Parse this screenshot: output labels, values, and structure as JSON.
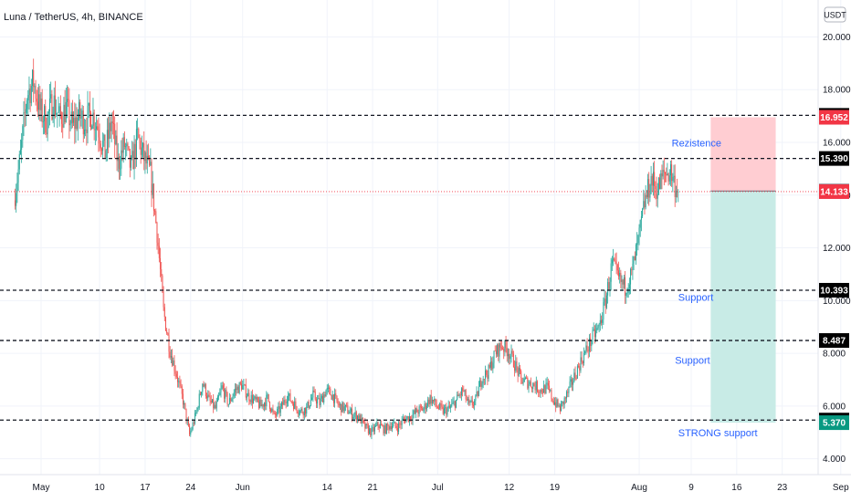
{
  "header": {
    "title": "Luna / TetherUS, 4h, BINANCE",
    "currency": "USDT"
  },
  "chart_data": {
    "type": "candlestick",
    "title": "Luna / TetherUS, 4h, BINANCE",
    "ylim": [
      3.4,
      21.4
    ],
    "yticks": [
      4,
      6,
      8,
      10,
      12,
      14,
      16,
      18,
      20
    ],
    "ytick_labels": [
      "4.000",
      "6.000",
      "8.000",
      "10.000",
      "12.000",
      "14.000",
      "16.000",
      "18.000",
      "20.000"
    ],
    "xticks": [
      {
        "label": "May",
        "day": 0
      },
      {
        "label": "10",
        "day": 9
      },
      {
        "label": "17",
        "day": 16
      },
      {
        "label": "24",
        "day": 23
      },
      {
        "label": "Jun",
        "day": 31
      },
      {
        "label": "14",
        "day": 44
      },
      {
        "label": "21",
        "day": 51
      },
      {
        "label": "Jul",
        "day": 61
      },
      {
        "label": "12",
        "day": 72
      },
      {
        "label": "19",
        "day": 79
      },
      {
        "label": "Aug",
        "day": 92
      },
      {
        "label": "9",
        "day": 100
      },
      {
        "label": "16",
        "day": 107
      },
      {
        "label": "23",
        "day": 114
      },
      {
        "label": "Sep",
        "day": 123
      }
    ],
    "price_path": [
      [
        -4,
        13.8
      ],
      [
        -3,
        15.5
      ],
      [
        -2,
        17.8
      ],
      [
        -1,
        18.3
      ],
      [
        0,
        17.2
      ],
      [
        1,
        16.8
      ],
      [
        2,
        17.6
      ],
      [
        3,
        16.9
      ],
      [
        4,
        17.3
      ],
      [
        5,
        16.6
      ],
      [
        6,
        17.0
      ],
      [
        7,
        16.8
      ],
      [
        8,
        17.1
      ],
      [
        9,
        16.5
      ],
      [
        10,
        15.6
      ],
      [
        11,
        16.8
      ],
      [
        12,
        15.2
      ],
      [
        13,
        15.9
      ],
      [
        14,
        15.0
      ],
      [
        15,
        16.2
      ],
      [
        16,
        15.4
      ],
      [
        17,
        14.8
      ],
      [
        18,
        12.6
      ],
      [
        19,
        9.6
      ],
      [
        20,
        8.1
      ],
      [
        21,
        7.2
      ],
      [
        22,
        6.2
      ],
      [
        23,
        4.9
      ],
      [
        24,
        5.7
      ],
      [
        25,
        6.9
      ],
      [
        26,
        6.2
      ],
      [
        27,
        5.9
      ],
      [
        28,
        6.7
      ],
      [
        29,
        6.1
      ],
      [
        30,
        6.6
      ],
      [
        31,
        6.8
      ],
      [
        32,
        6.4
      ],
      [
        33,
        6.2
      ],
      [
        34,
        6.0
      ],
      [
        35,
        6.3
      ],
      [
        36,
        5.6
      ],
      [
        37,
        5.9
      ],
      [
        38,
        6.4
      ],
      [
        39,
        6.1
      ],
      [
        40,
        5.8
      ],
      [
        41,
        5.9
      ],
      [
        42,
        6.4
      ],
      [
        43,
        6.1
      ],
      [
        44,
        6.6
      ],
      [
        45,
        6.4
      ],
      [
        46,
        6.0
      ],
      [
        47,
        5.9
      ],
      [
        48,
        5.7
      ],
      [
        49,
        5.6
      ],
      [
        50,
        5.2
      ],
      [
        51,
        5.0
      ],
      [
        52,
        5.3
      ],
      [
        53,
        5.1
      ],
      [
        54,
        5.3
      ],
      [
        55,
        5.2
      ],
      [
        56,
        5.5
      ],
      [
        57,
        5.6
      ],
      [
        58,
        5.8
      ],
      [
        59,
        5.9
      ],
      [
        60,
        6.3
      ],
      [
        61,
        6.0
      ],
      [
        62,
        5.8
      ],
      [
        63,
        5.9
      ],
      [
        64,
        6.2
      ],
      [
        65,
        6.6
      ],
      [
        66,
        6.0
      ],
      [
        67,
        6.2
      ],
      [
        68,
        7.1
      ],
      [
        69,
        7.3
      ],
      [
        70,
        8.0
      ],
      [
        71,
        8.3
      ],
      [
        72,
        8.1
      ],
      [
        73,
        7.6
      ],
      [
        74,
        7.0
      ],
      [
        75,
        6.9
      ],
      [
        76,
        6.8
      ],
      [
        77,
        6.6
      ],
      [
        78,
        6.7
      ],
      [
        79,
        6.2
      ],
      [
        80,
        5.9
      ],
      [
        81,
        6.4
      ],
      [
        82,
        7.0
      ],
      [
        83,
        7.6
      ],
      [
        84,
        8.1
      ],
      [
        85,
        8.6
      ],
      [
        86,
        9.0
      ],
      [
        87,
        10.0
      ],
      [
        88,
        11.4
      ],
      [
        89,
        10.8
      ],
      [
        90,
        10.5
      ],
      [
        91,
        11.0
      ],
      [
        92,
        12.2
      ],
      [
        93,
        13.7
      ],
      [
        94,
        14.6
      ],
      [
        95,
        14.2
      ],
      [
        96,
        14.8
      ],
      [
        97,
        14.9
      ],
      [
        98,
        14.13
      ]
    ],
    "horizontal_levels": [
      {
        "value": 17.025,
        "label": "17.025"
      },
      {
        "value": 15.39,
        "label": "15.390"
      },
      {
        "value": 10.393,
        "label": "10.393"
      },
      {
        "value": 8.487,
        "label": "8.487"
      },
      {
        "value": 5.469,
        "label": "5.469"
      }
    ],
    "price_tags": [
      {
        "value": 16.952,
        "label": "16.952",
        "bg": "#f23645",
        "fg": "#ffffff"
      },
      {
        "value": 14.155,
        "label": "14.155",
        "bg": "#787b86",
        "fg": "#ffffff"
      },
      {
        "value": 14.133,
        "label": "14.133",
        "bg": "#f23645",
        "fg": "#ffffff"
      },
      {
        "value": 5.37,
        "label": "5.370",
        "bg": "#089981",
        "fg": "#ffffff"
      }
    ],
    "current_price": 14.133,
    "position": {
      "entry": 14.155,
      "stop": 16.952,
      "target": 5.37,
      "start_day": 103,
      "end_day": 113,
      "stop_color": "#ffcdd2",
      "target_color": "#c8ebe6"
    },
    "annotations": [
      {
        "text": "Rezistence",
        "day": 97,
        "value": 15.85
      },
      {
        "text": "Support",
        "day": 98,
        "value": 10.0
      },
      {
        "text": "Support",
        "day": 97.5,
        "value": 7.6
      },
      {
        "text": "STRONG support",
        "day": 98,
        "value": 4.85
      }
    ],
    "colors": {
      "up": "#26a69a",
      "down": "#ef5350",
      "level_line": "#131722",
      "annotation": "#2962ff",
      "current_line": "#f23645"
    }
  }
}
